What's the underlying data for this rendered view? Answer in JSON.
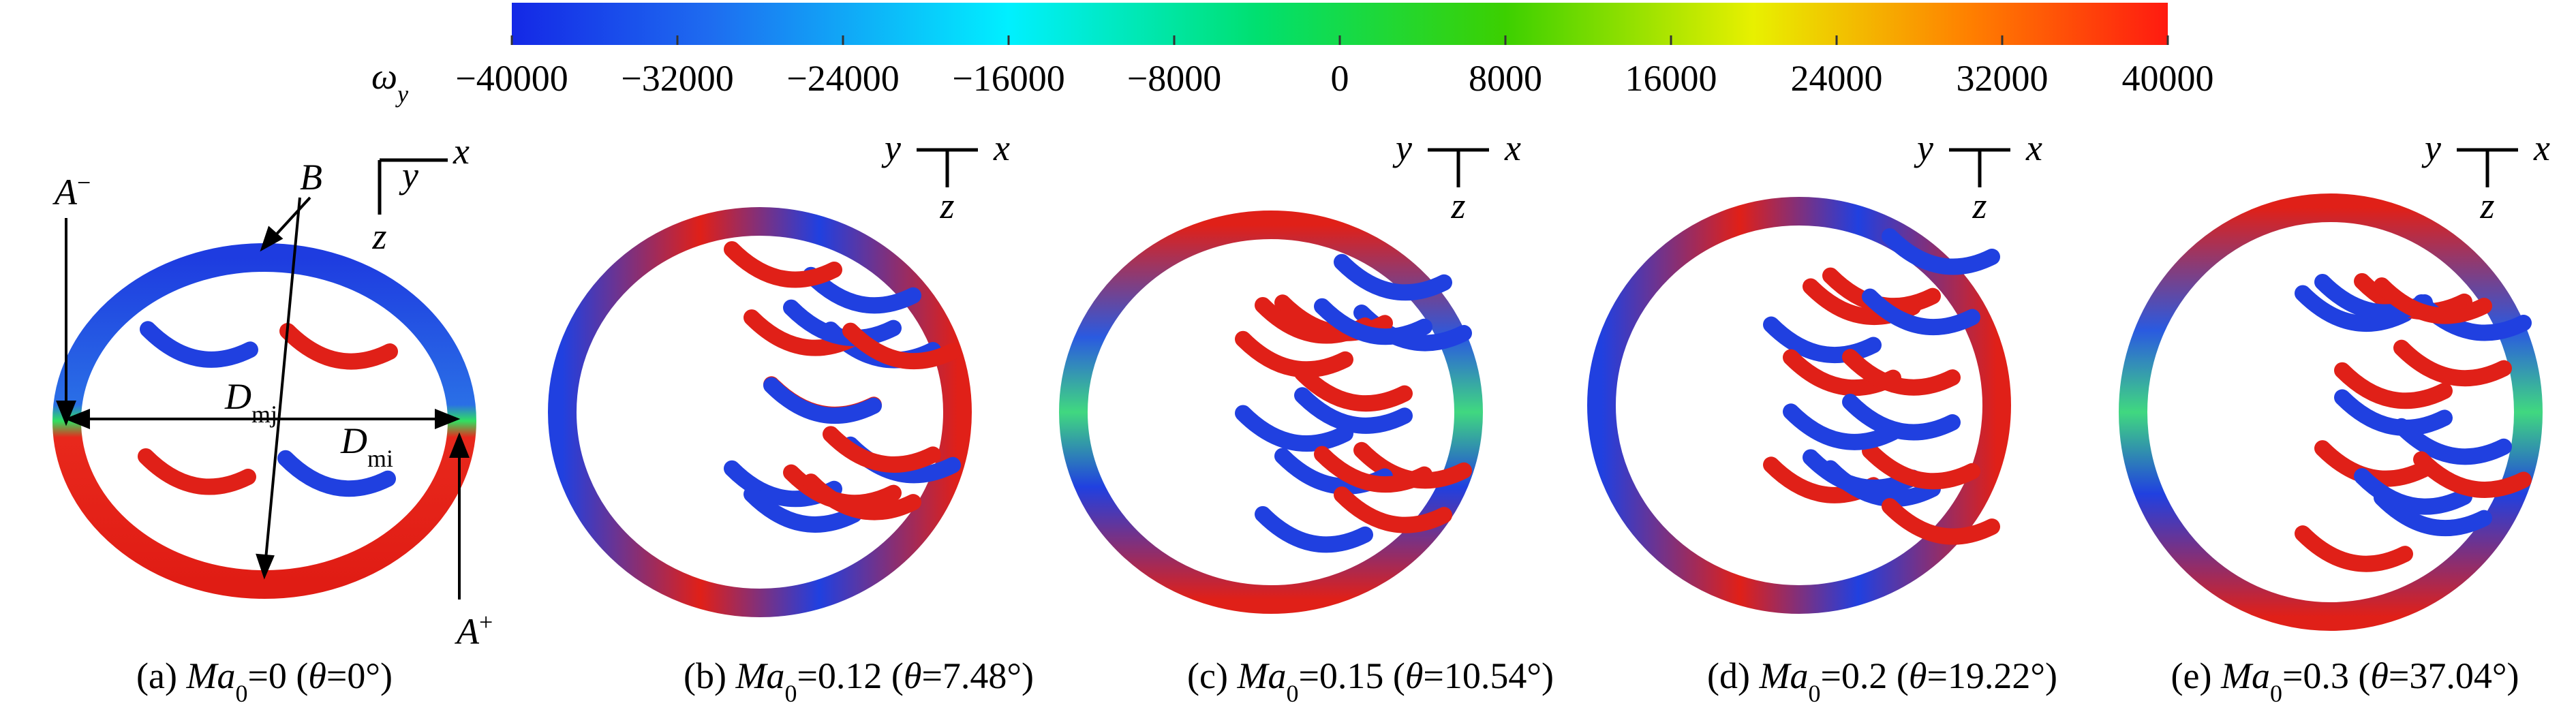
{
  "colorbar": {
    "symbol": [
      {
        "t": "ω",
        "i": true
      },
      {
        "t": "y",
        "i": true,
        "sub": true
      }
    ],
    "lim": [
      -40000,
      40000
    ],
    "ticks": [
      {
        "value": -40000,
        "label": "−40000"
      },
      {
        "value": -32000,
        "label": "−32000"
      },
      {
        "value": -24000,
        "label": "−24000"
      },
      {
        "value": -16000,
        "label": "−16000"
      },
      {
        "value": -8000,
        "label": "−8000"
      },
      0,
      8000,
      16000,
      24000,
      32000,
      40000
    ]
  },
  "panels": [
    {
      "caption": [
        {
          "t": "(a) "
        },
        {
          "t": "Ma",
          "i": true
        },
        {
          "t": "0",
          "sub": true
        },
        {
          "t": "=0 ("
        },
        {
          "t": "θ",
          "i": true
        },
        {
          "t": "=0°)"
        }
      ],
      "axes": {
        "x": "x",
        "y": "y",
        "z": "z"
      }
    },
    {
      "caption": [
        {
          "t": "(b) "
        },
        {
          "t": "Ma",
          "i": true
        },
        {
          "t": "0",
          "sub": true
        },
        {
          "t": "=0.12 ("
        },
        {
          "t": "θ",
          "i": true
        },
        {
          "t": "=7.48°)"
        }
      ],
      "axes": {
        "x": "x",
        "y": "y",
        "z": "z"
      }
    },
    {
      "caption": [
        {
          "t": "(c) "
        },
        {
          "t": "Ma",
          "i": true
        },
        {
          "t": "0",
          "sub": true
        },
        {
          "t": "=0.15 ("
        },
        {
          "t": "θ",
          "i": true
        },
        {
          "t": "=10.54°)"
        }
      ],
      "axes": {
        "x": "x",
        "y": "y",
        "z": "z"
      }
    },
    {
      "caption": [
        {
          "t": "(d) "
        },
        {
          "t": "Ma",
          "i": true
        },
        {
          "t": "0",
          "sub": true
        },
        {
          "t": "=0.2 ("
        },
        {
          "t": "θ",
          "i": true
        },
        {
          "t": "=19.22°)"
        }
      ],
      "axes": {
        "x": "x",
        "y": "y",
        "z": "z"
      }
    },
    {
      "caption": [
        {
          "t": "(e) "
        },
        {
          "t": "Ma",
          "i": true
        },
        {
          "t": "0",
          "sub": true
        },
        {
          "t": "=0.3 ("
        },
        {
          "t": "θ",
          "i": true
        },
        {
          "t": "=37.04°)"
        }
      ],
      "axes": {
        "x": "x",
        "y": "y",
        "z": "z"
      }
    }
  ],
  "annotations": {
    "A_minus": [
      {
        "t": "A",
        "i": true
      },
      {
        "t": "−",
        "sup": true
      }
    ],
    "A_plus": [
      {
        "t": "A",
        "i": true
      },
      {
        "t": "+",
        "sup": true
      }
    ],
    "B": [
      {
        "t": "B",
        "i": true
      }
    ],
    "D_mj": [
      {
        "t": "D",
        "i": true
      },
      {
        "t": "mj",
        "sub": true
      }
    ],
    "D_mi": [
      {
        "t": "D",
        "i": true
      },
      {
        "t": "mi",
        "sub": true
      }
    ]
  }
}
